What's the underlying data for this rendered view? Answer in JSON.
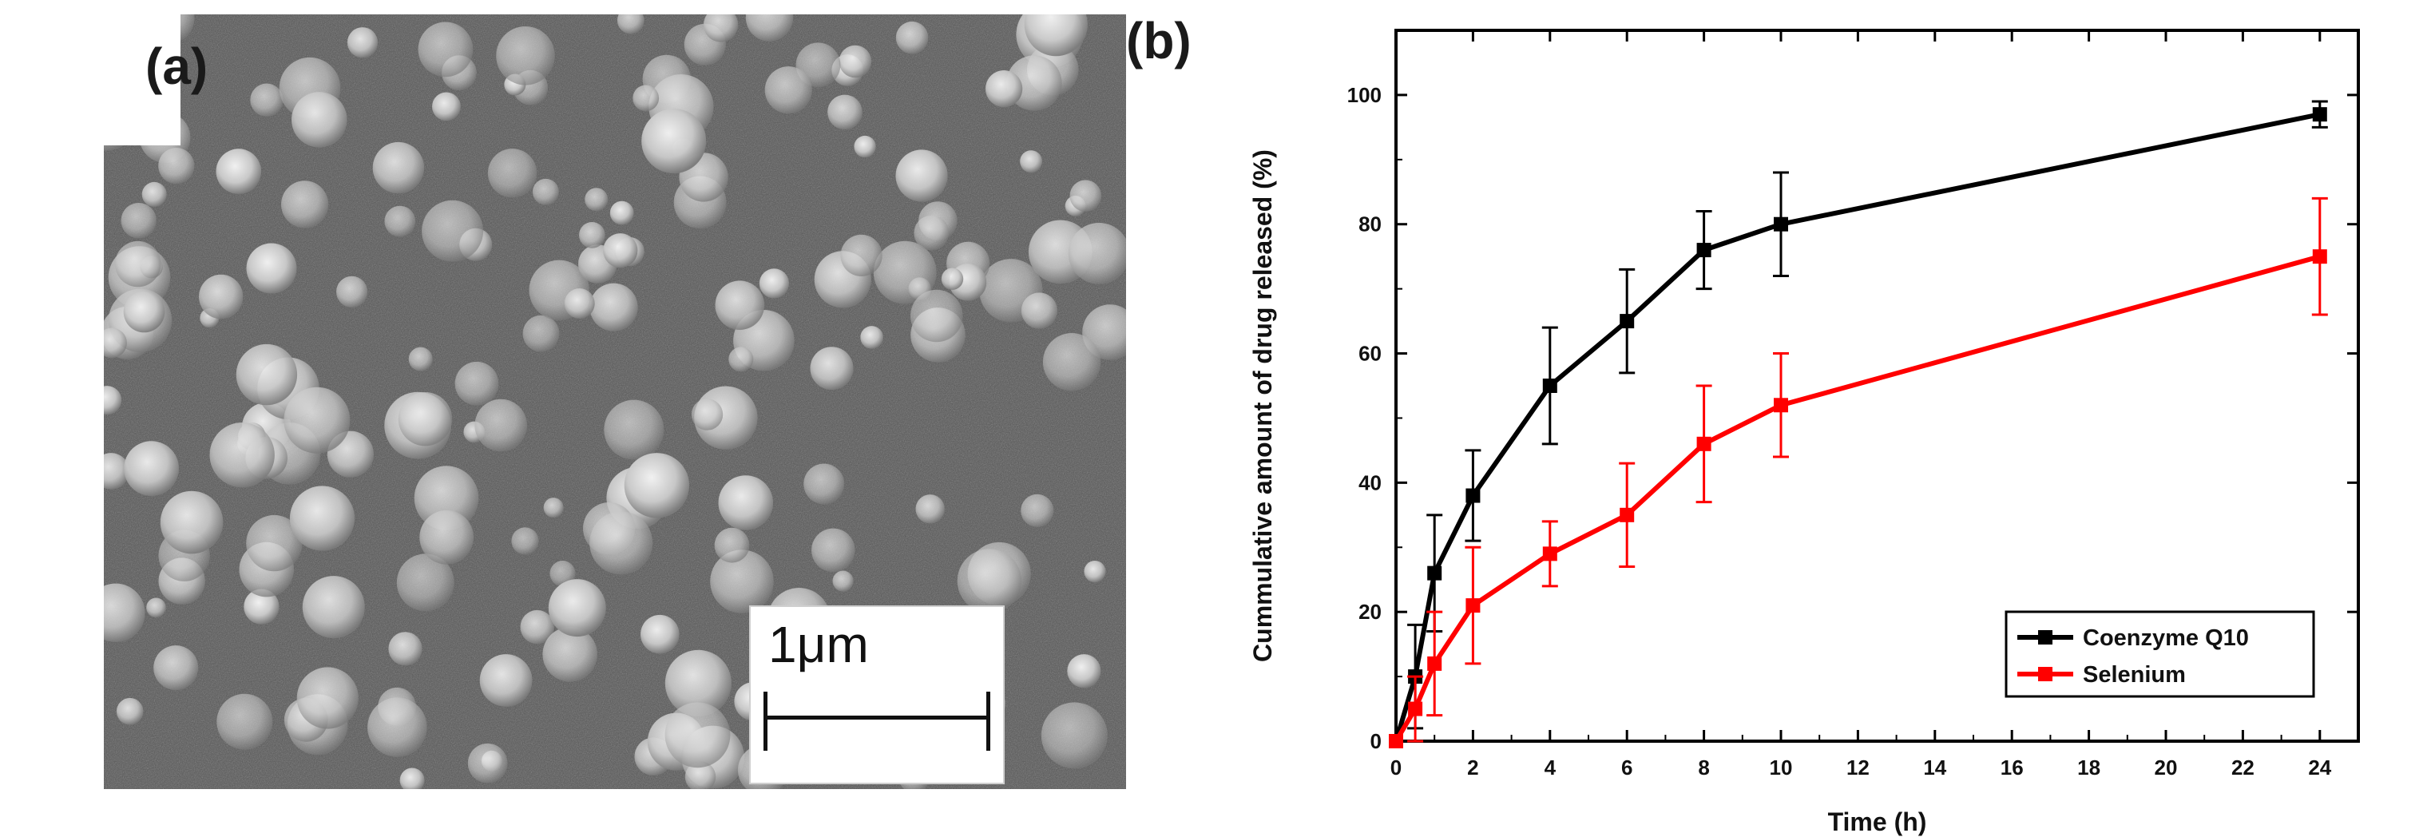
{
  "panel_a": {
    "label": "(a)",
    "scale_bar_label": "1μm"
  },
  "panel_b": {
    "label": "(b)"
  },
  "chart_data": {
    "type": "line",
    "xlabel": "Time (h)",
    "ylabel": "Cummulative amount of drug released (%)",
    "xlim": [
      0,
      25
    ],
    "ylim": [
      0,
      110
    ],
    "xticks": [
      0,
      2,
      4,
      6,
      8,
      10,
      12,
      14,
      16,
      18,
      20,
      22,
      24
    ],
    "yticks": [
      0,
      20,
      40,
      60,
      80,
      100
    ],
    "legend_position": "bottom-right",
    "series": [
      {
        "name": "Coenzyme Q10",
        "color": "#000000",
        "x": [
          0,
          0.5,
          1,
          2,
          4,
          6,
          8,
          10,
          24
        ],
        "y": [
          0,
          10,
          26,
          38,
          55,
          65,
          76,
          80,
          97
        ],
        "err": [
          0,
          8,
          9,
          7,
          9,
          8,
          6,
          8,
          2
        ]
      },
      {
        "name": "Selenium",
        "color": "#ff0000",
        "x": [
          0,
          0.5,
          1,
          2,
          4,
          6,
          8,
          10,
          24
        ],
        "y": [
          0,
          5,
          12,
          21,
          29,
          35,
          46,
          52,
          75
        ],
        "err": [
          0,
          5,
          8,
          9,
          5,
          8,
          9,
          8,
          9
        ]
      }
    ]
  }
}
